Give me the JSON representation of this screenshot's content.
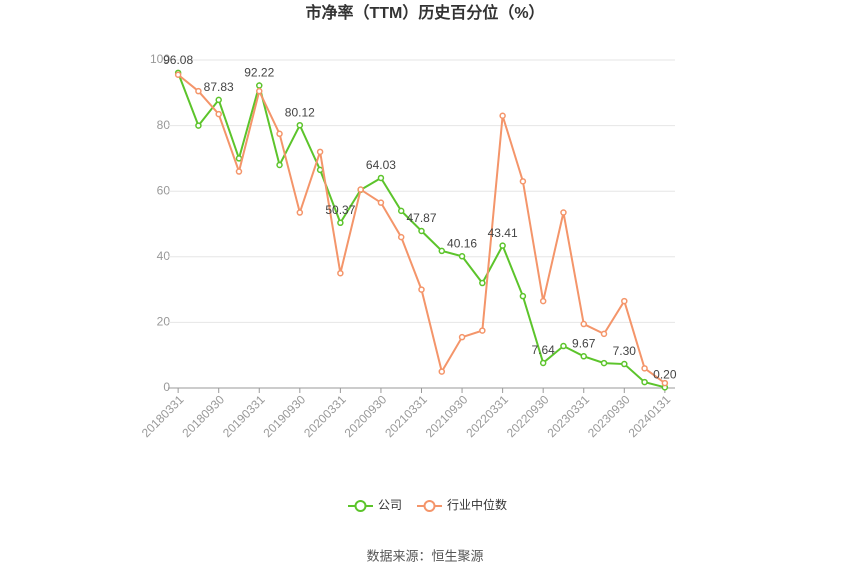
{
  "chart_data": {
    "type": "line",
    "title": "市净率（TTM）历史百分位（%）",
    "source": "数据来源：恒生聚源",
    "categories": [
      "20180331",
      null,
      "20180930",
      null,
      "20190331",
      null,
      "20190930",
      null,
      "20200331",
      null,
      "20200930",
      null,
      "20210331",
      null,
      "20210930",
      null,
      "20220331",
      null,
      "20220930",
      null,
      "20230331",
      null,
      "20230930",
      null,
      "20240131"
    ],
    "series": [
      {
        "name": "公司",
        "color": "#5cc42b",
        "values": [
          96.08,
          80,
          87.83,
          70,
          92.22,
          68,
          80.12,
          66.5,
          50.37,
          60.4,
          64.03,
          54,
          47.87,
          41.8,
          40.16,
          32,
          43.41,
          28,
          7.64,
          12.8,
          9.67,
          7.6,
          7.3,
          1.8,
          0.2
        ],
        "value_labels": [
          "96.08",
          null,
          "87.83",
          null,
          "92.22",
          null,
          "80.12",
          null,
          "50.37",
          null,
          "64.03",
          null,
          "47.87",
          null,
          "40.16",
          null,
          "43.41",
          null,
          "7.64",
          null,
          "9.67",
          null,
          "7.30",
          null,
          "0.20"
        ]
      },
      {
        "name": "行业中位数",
        "color": "#f4956a",
        "values": [
          95.5,
          90.5,
          83.5,
          66,
          90.5,
          77.5,
          53.5,
          72,
          35,
          60.5,
          56.5,
          46,
          30,
          5,
          15.5,
          17.5,
          83,
          63,
          26.5,
          53.5,
          19.5,
          16.5,
          26.5,
          6,
          1.5
        ]
      }
    ],
    "ylim": [
      0,
      100
    ],
    "yticks": [
      0,
      20,
      40,
      60,
      80,
      100
    ],
    "grid": true,
    "legend": "bottom"
  }
}
